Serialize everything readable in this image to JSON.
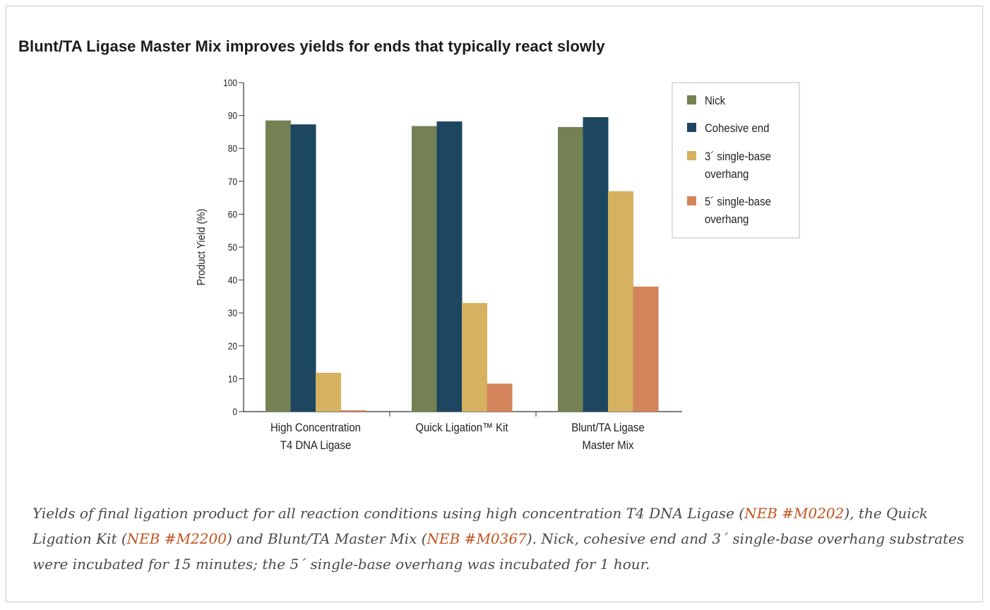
{
  "heading": "Blunt/TA Ligase Master Mix improves yields for ends that typically react slowly",
  "chart_data": {
    "type": "bar",
    "title": "",
    "xlabel": "",
    "ylabel": "Product Yield (%)",
    "ylim": [
      0,
      100
    ],
    "yticks": [
      0,
      10,
      20,
      30,
      40,
      50,
      60,
      70,
      80,
      90,
      100
    ],
    "categories": [
      [
        "High Concentration",
        "T4 DNA Ligase"
      ],
      [
        "Quick Ligation™ Kit"
      ],
      [
        "Blunt/TA Ligase",
        "Master Mix"
      ]
    ],
    "series": [
      {
        "name": "Nick",
        "color": "#748253",
        "values": [
          88.5,
          86.8,
          86.5
        ]
      },
      {
        "name": "Cohesive end",
        "color": "#1d4761",
        "values": [
          87.3,
          88.2,
          89.5
        ]
      },
      {
        "name": "3´ single-base overhang",
        "legend_lines": [
          "3´ single-base",
          "overhang"
        ],
        "color": "#d5b160",
        "values": [
          11.8,
          33,
          67
        ]
      },
      {
        "name": "5´ single-base overhang",
        "legend_lines": [
          "5´ single-base",
          "overhang"
        ],
        "color": "#d4845a",
        "values": [
          0.4,
          8.5,
          38
        ]
      }
    ],
    "legend_position": "top-right",
    "grid": false
  },
  "caption": {
    "t1": "Yields of final ligation product for all reaction conditions using high concentration T4 DNA Ligase (",
    "link1": "NEB #M0202",
    "t2": "), the Quick Ligation Kit (",
    "link2": "NEB #M2200",
    "t3": ") and Blunt/TA Master Mix (",
    "link3": "NEB #M0367",
    "t4": "). Nick, cohesive end and 3´ single-base overhang substrates were incubated for 15 minutes; the 5´ single-base overhang was incubated for 1 hour."
  }
}
